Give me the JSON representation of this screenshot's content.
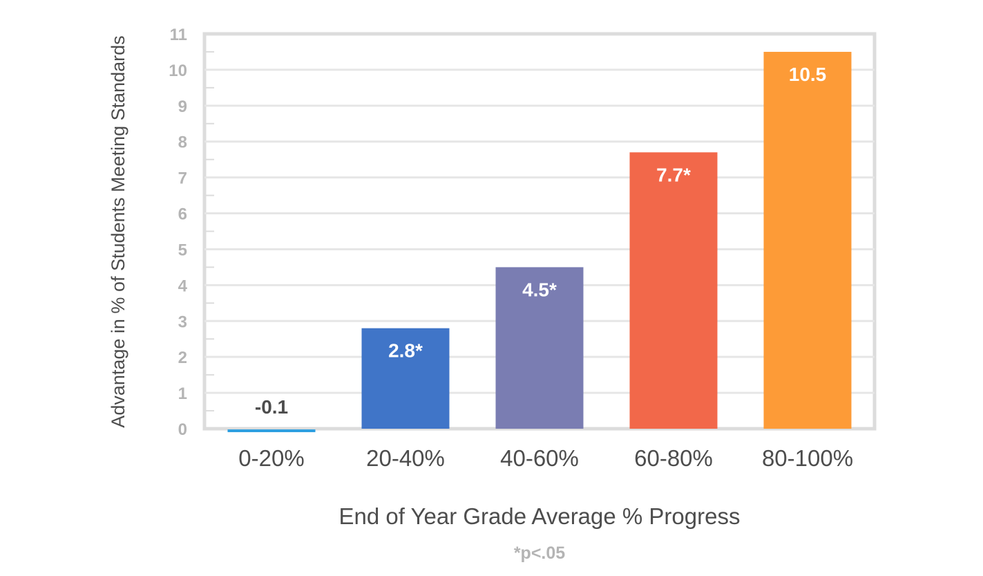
{
  "chart_data": {
    "type": "bar",
    "categories": [
      "0-20%",
      "20-40%",
      "40-60%",
      "60-80%",
      "80-100%"
    ],
    "values": [
      -0.1,
      2.8,
      4.5,
      7.7,
      10.5
    ],
    "data_labels": [
      "-0.1",
      "2.8*",
      "4.5*",
      "7.7*",
      "10.5"
    ],
    "colors": [
      "#2e9fe0",
      "#4075c8",
      "#7a7db2",
      "#f2684a",
      "#fd9b37"
    ],
    "label_colors": [
      "#4d4d4d",
      "#ffffff",
      "#ffffff",
      "#ffffff",
      "#ffffff"
    ],
    "xlabel": "End of Year Grade Average % Progress",
    "ylabel": "Advantage in % of Students Meeting Standards",
    "ylim": [
      0,
      11
    ],
    "yticks": [
      0,
      1,
      2,
      3,
      4,
      5,
      6,
      7,
      8,
      9,
      10,
      11
    ],
    "grid": true,
    "footnote": "*p<.05"
  }
}
